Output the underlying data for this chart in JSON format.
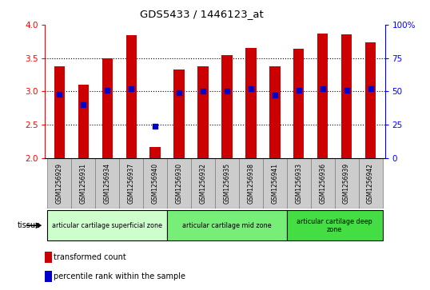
{
  "title": "GDS5433 / 1446123_at",
  "samples": [
    "GSM1256929",
    "GSM1256931",
    "GSM1256934",
    "GSM1256937",
    "GSM1256940",
    "GSM1256930",
    "GSM1256932",
    "GSM1256935",
    "GSM1256938",
    "GSM1256941",
    "GSM1256933",
    "GSM1256936",
    "GSM1256939",
    "GSM1256942"
  ],
  "bar_bottom": 2.0,
  "transformed_count": [
    3.37,
    3.1,
    3.5,
    3.84,
    2.16,
    3.33,
    3.38,
    3.54,
    3.65,
    3.37,
    3.64,
    3.87,
    3.85,
    3.74
  ],
  "percentile_rank": [
    48,
    40,
    51,
    52,
    24,
    49,
    50,
    50,
    52,
    47,
    51,
    52,
    51,
    52
  ],
  "ylim_left": [
    2.0,
    4.0
  ],
  "ylim_right": [
    0,
    100
  ],
  "yticks_left": [
    2.0,
    2.5,
    3.0,
    3.5,
    4.0
  ],
  "yticks_right": [
    0,
    25,
    50,
    75,
    100
  ],
  "ytick_labels_right": [
    "0",
    "25",
    "50",
    "75",
    "100%"
  ],
  "bar_color": "#cc0000",
  "dot_color": "#0000cc",
  "groups": [
    {
      "label": "articular cartilage superficial zone",
      "count": 5,
      "color": "#ccffcc"
    },
    {
      "label": "articular cartilage mid zone",
      "count": 5,
      "color": "#77ee77"
    },
    {
      "label": "articular cartilage deep\nzone",
      "count": 4,
      "color": "#44dd44"
    }
  ],
  "tissue_label": "tissue",
  "legend_bar_label": "transformed count",
  "legend_dot_label": "percentile rank within the sample",
  "background_color": "#ffffff",
  "tick_area_color": "#cccccc"
}
